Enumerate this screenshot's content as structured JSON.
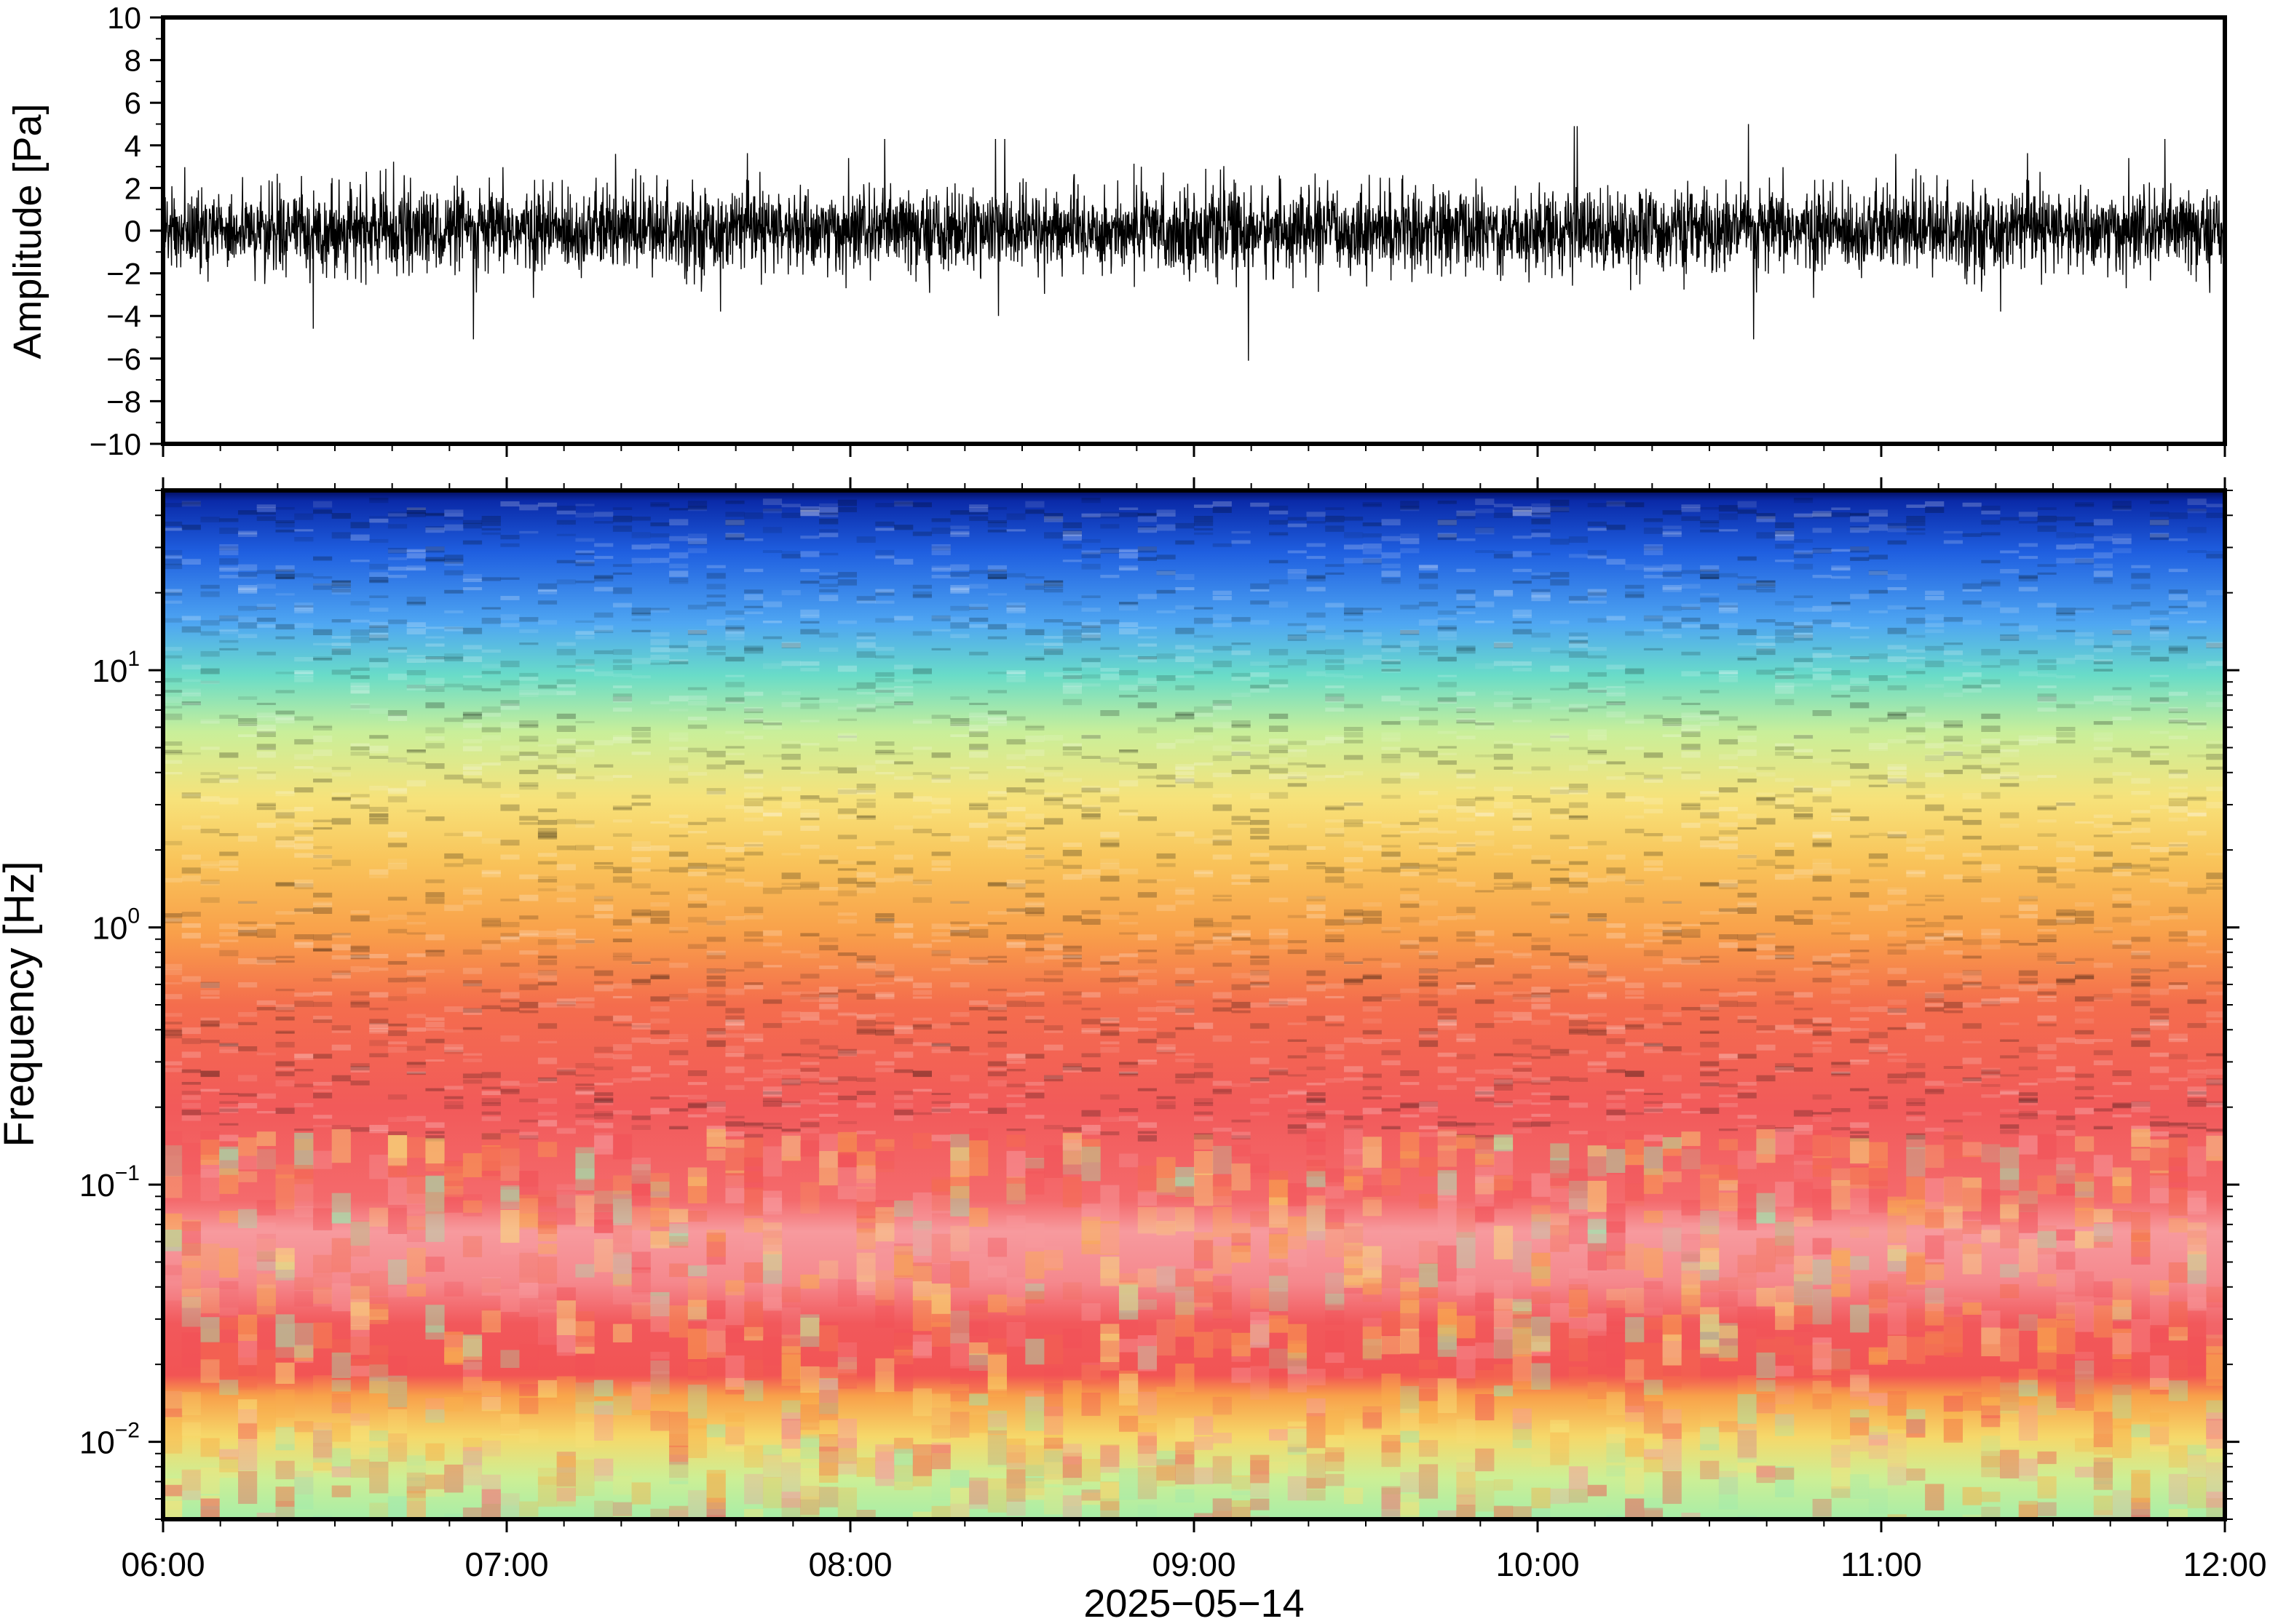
{
  "chart_data": [
    {
      "type": "line",
      "panel": "waveform",
      "ylabel": "Amplitude [Pa]",
      "ylim": [
        -10,
        10
      ],
      "yticks": [
        10,
        8,
        6,
        4,
        2,
        0,
        -2,
        -4,
        -6,
        -8,
        -10
      ],
      "ytick_labels": [
        "10",
        "8",
        "6",
        "4",
        "2",
        "0",
        "−2",
        "−4",
        "−6",
        "−8",
        "−10"
      ],
      "x_range": [
        "06:00",
        "12:00"
      ],
      "line_color": "#000000",
      "grid": false,
      "series": [
        {
          "description_values": "dense noise trace, typical envelope about ±2 Pa with spikes up to about ±6 Pa",
          "values": [
            0.4,
            -1.8,
            2.1,
            -0.6,
            3.0,
            -2.7,
            1.2,
            -4.6,
            2.4,
            -1.1,
            4.3,
            -3.2,
            0.8,
            -2.0,
            3.6,
            -5.1,
            1.7,
            -0.9,
            2.9,
            -2.4,
            4.9,
            -3.8,
            1.1,
            -6.1,
            2.6,
            -1.5,
            3.3,
            -2.9,
            5.0,
            -4.0
          ]
        }
      ]
    },
    {
      "type": "heatmap",
      "panel": "spectrogram",
      "ylabel": "Frequency [Hz]",
      "yscale": "log",
      "ylim": [
        0.005,
        50
      ],
      "yticks": [
        0.01,
        0.1,
        1,
        10
      ],
      "ytick_labels": [
        {
          "base": "10",
          "exp": "−2"
        },
        {
          "base": "10",
          "exp": "−1"
        },
        {
          "base": "10",
          "exp": "0"
        },
        {
          "base": "10",
          "exp": "1"
        }
      ],
      "xlabel": "2025−05−14",
      "xticks": [
        "06:00",
        "07:00",
        "08:00",
        "09:00",
        "10:00",
        "11:00",
        "12:00"
      ],
      "colormap": [
        "#041a8c",
        "#1f5fe0",
        "#4fa7f2",
        "#69dcc8",
        "#c9ef9a",
        "#f7e27a",
        "#f9b04c",
        "#f46d4d",
        "#f24f56",
        "#f79a9e"
      ],
      "grid": false
    }
  ]
}
